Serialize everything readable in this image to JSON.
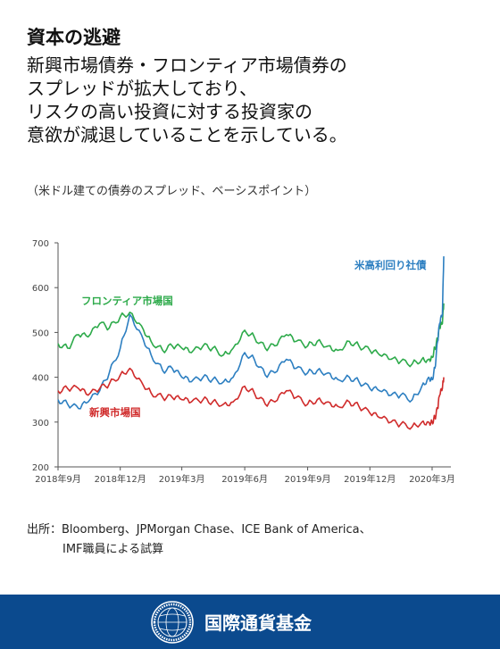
{
  "header": {
    "title": "資本の逃避",
    "subtitle_lines": [
      "新興市場債券・フロンティア市場債券の",
      "スプレッドが拡大しており、",
      "リスクの高い投資に対する投資家の",
      "意欲が減退していることを示している。"
    ],
    "units_note": "（米ドル建ての債券のスプレッド、ベーシスポイント）"
  },
  "chart_data": {
    "type": "line",
    "ylim": [
      200,
      700
    ],
    "y_ticks": [
      "200",
      "300",
      "400",
      "500",
      "600",
      "700"
    ],
    "x_ticks": [
      "2018年9月",
      "2018年12月",
      "2019年3月",
      "2019年6月",
      "2019年9月",
      "2019年12月",
      "2020年3月"
    ],
    "x": [
      "2018-09-01",
      "2018-09-15",
      "2018-10-01",
      "2018-10-15",
      "2018-11-01",
      "2018-11-15",
      "2018-12-01",
      "2018-12-15",
      "2019-01-01",
      "2019-01-15",
      "2019-02-01",
      "2019-02-15",
      "2019-03-01",
      "2019-03-15",
      "2019-04-01",
      "2019-04-15",
      "2019-05-01",
      "2019-05-15",
      "2019-06-01",
      "2019-06-15",
      "2019-07-01",
      "2019-07-15",
      "2019-08-01",
      "2019-08-15",
      "2019-09-01",
      "2019-09-15",
      "2019-10-01",
      "2019-10-15",
      "2019-11-01",
      "2019-11-15",
      "2019-12-01",
      "2019-12-15",
      "2020-01-01",
      "2020-01-15",
      "2020-02-01",
      "2020-02-15",
      "2020-02-25",
      "2020-03-01",
      "2020-03-05",
      "2020-03-09",
      "2020-03-12",
      "2020-03-16",
      "2020-03-18"
    ],
    "grid": false,
    "series": [
      {
        "name": "フロンティア市場国",
        "color": "#2daa4a",
        "values": [
          475,
          465,
          495,
          490,
          520,
          510,
          535,
          545,
          515,
          480,
          460,
          470,
          465,
          455,
          470,
          465,
          450,
          465,
          505,
          490,
          465,
          470,
          495,
          480,
          470,
          480,
          470,
          460,
          480,
          470,
          460,
          450,
          440,
          435,
          430,
          440,
          440,
          445,
          465,
          485,
          510,
          520,
          565
        ]
      },
      {
        "name": "米高利回り社債",
        "color": "#2d7fc1",
        "values": [
          350,
          340,
          330,
          345,
          370,
          410,
          465,
          540,
          495,
          450,
          415,
          420,
          400,
          390,
          400,
          395,
          390,
          400,
          455,
          440,
          405,
          410,
          440,
          420,
          410,
          415,
          410,
          395,
          400,
          390,
          375,
          370,
          360,
          360,
          350,
          380,
          400,
          395,
          420,
          480,
          520,
          540,
          670
        ]
      },
      {
        "name": "新興市場国",
        "color": "#d02b2b",
        "values": [
          370,
          375,
          375,
          360,
          375,
          385,
          405,
          420,
          390,
          365,
          355,
          355,
          350,
          345,
          350,
          345,
          340,
          345,
          380,
          365,
          340,
          345,
          370,
          355,
          340,
          350,
          345,
          335,
          345,
          335,
          320,
          310,
          300,
          295,
          290,
          300,
          300,
          300,
          310,
          330,
          360,
          375,
          400
        ]
      }
    ]
  },
  "source": {
    "line1": "出所：Bloomberg、JPMorgan Chase、ICE Bank of America、",
    "line2": "IMF職員による試算"
  },
  "footer": {
    "org_name": "国際通貨基金",
    "background": "#0b4a8e"
  }
}
